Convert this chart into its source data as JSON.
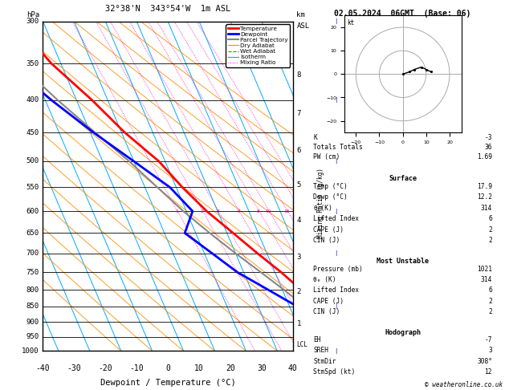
{
  "title_left": "32°38'N  343°54'W  1m ASL",
  "title_right": "02.05.2024  06GMT  (Base: 06)",
  "xlabel": "Dewpoint / Temperature (°C)",
  "pressure_levels": [
    300,
    350,
    400,
    450,
    500,
    550,
    600,
    650,
    700,
    750,
    800,
    850,
    900,
    950,
    1000
  ],
  "temp_pressures": [
    1000,
    950,
    900,
    850,
    800,
    750,
    700,
    650,
    600,
    550,
    500,
    450,
    400,
    350,
    300
  ],
  "temp_data": [
    17.9,
    16.0,
    13.5,
    10.0,
    6.0,
    2.0,
    -3.0,
    -8.0,
    -13.5,
    -18.0,
    -22.0,
    -29.0,
    -35.0,
    -43.0,
    -49.0
  ],
  "dewp_data": [
    12.2,
    10.0,
    7.0,
    2.5,
    -4.5,
    -12.0,
    -17.5,
    -23.5,
    -18.0,
    -22.0,
    -30.0,
    -39.0,
    -48.0,
    -57.0,
    -66.0
  ],
  "parcel_data": [
    17.9,
    13.5,
    9.5,
    5.0,
    0.5,
    -4.5,
    -10.0,
    -15.5,
    -21.0,
    -26.0,
    -31.5,
    -38.5,
    -46.0,
    -53.5,
    -60.0
  ],
  "xlim_T": [
    -40,
    40
  ],
  "p_min": 300,
  "p_max": 1000,
  "skew_deg": 45,
  "km_labels": [
    1,
    2,
    3,
    4,
    5,
    6,
    7,
    8
  ],
  "km_pressures": [
    905,
    805,
    710,
    620,
    545,
    480,
    420,
    365
  ],
  "lcl_pressure": 978,
  "mix_ratios": [
    1,
    2,
    3,
    5,
    8,
    10,
    15,
    20,
    25
  ],
  "legend_items": [
    {
      "label": "Temperature",
      "color": "#ff0000",
      "lw": 2.0,
      "ls": "-"
    },
    {
      "label": "Dewpoint",
      "color": "#0000ff",
      "lw": 2.0,
      "ls": "-"
    },
    {
      "label": "Parcel Trajectory",
      "color": "#888888",
      "lw": 1.5,
      "ls": "-"
    },
    {
      "label": "Dry Adiabat",
      "color": "#ff8c00",
      "lw": 0.8,
      "ls": "-"
    },
    {
      "label": "Wet Adiabat",
      "color": "#00aa00",
      "lw": 0.8,
      "ls": "--"
    },
    {
      "label": "Isotherm",
      "color": "#00aaff",
      "lw": 0.8,
      "ls": "-"
    },
    {
      "label": "Mixing Ratio",
      "color": "#ff00bb",
      "lw": 0.7,
      "ls": ":"
    }
  ],
  "stats_ktt": [
    [
      "K",
      "-3"
    ],
    [
      "Totals Totals",
      "36"
    ],
    [
      "PW (cm)",
      "1.69"
    ]
  ],
  "stats_surface_title": "Surface",
  "stats_surface": [
    [
      "Temp (°C)",
      "17.9"
    ],
    [
      "Dewp (°C)",
      "12.2"
    ],
    [
      "θₑ(K)",
      "314"
    ],
    [
      "Lifted Index",
      "6"
    ],
    [
      "CAPE (J)",
      "2"
    ],
    [
      "CIN (J)",
      "2"
    ]
  ],
  "stats_mu_title": "Most Unstable",
  "stats_mu": [
    [
      "Pressure (mb)",
      "1021"
    ],
    [
      "θₑ (K)",
      "314"
    ],
    [
      "Lifted Index",
      "6"
    ],
    [
      "CAPE (J)",
      "2"
    ],
    [
      "CIN (J)",
      "2"
    ]
  ],
  "stats_hodo_title": "Hodograph",
  "stats_hodo": [
    [
      "EH",
      "-7"
    ],
    [
      "SREH",
      "3"
    ],
    [
      "StmDir",
      "308°"
    ],
    [
      "StmSpd (kt)",
      "12"
    ]
  ],
  "hodo_u": [
    0,
    3,
    5,
    8,
    10,
    12
  ],
  "hodo_v": [
    0,
    1,
    2,
    3,
    2,
    1
  ],
  "wind_barb_pressures": [
    300,
    400,
    500,
    600,
    700,
    850,
    1000
  ],
  "wind_u": [
    15,
    12,
    10,
    8,
    6,
    4,
    3
  ],
  "wind_v": [
    2,
    2,
    2,
    1,
    1,
    0,
    0
  ],
  "bg": "#ffffff",
  "plot_bg": "#ffffff",
  "border_color": "#000000"
}
